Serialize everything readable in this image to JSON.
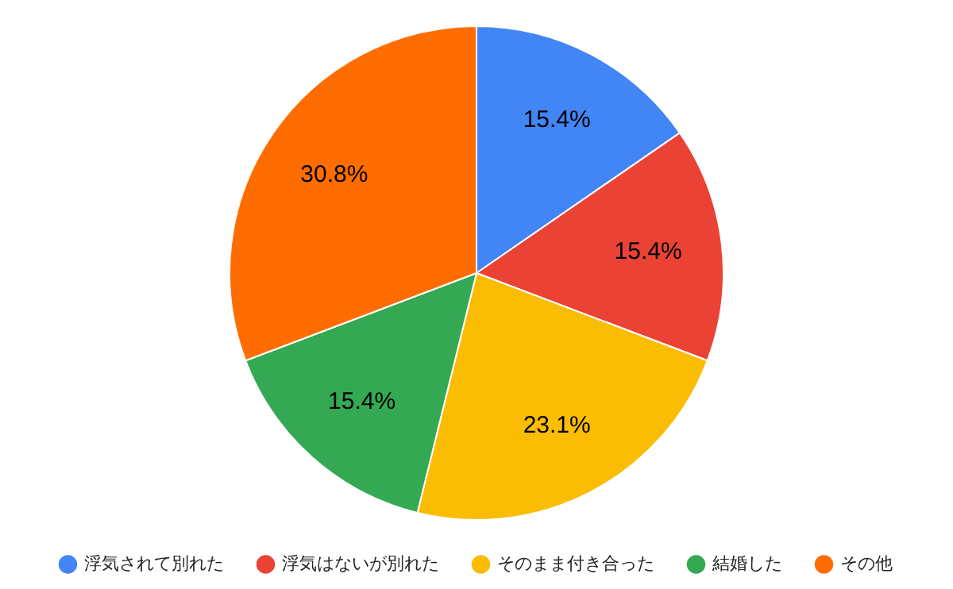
{
  "chart_data": {
    "type": "pie",
    "categories": [
      "浮気されて別れた",
      "浮気はないが別れた",
      "そのまま付き合った",
      "結婚した",
      "その他"
    ],
    "values": [
      15.4,
      15.4,
      23.1,
      15.4,
      30.8
    ],
    "colors": [
      "#4285f4",
      "#ea4335",
      "#fbbc04",
      "#34a853",
      "#ff6d01"
    ],
    "value_labels": [
      "15.4%",
      "15.4%",
      "23.1%",
      "15.4%",
      "30.8%"
    ],
    "legend": "bottom"
  }
}
